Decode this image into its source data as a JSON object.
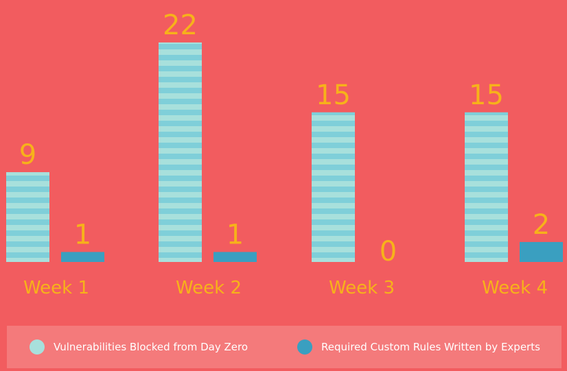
{
  "chart_data": {
    "type": "bar",
    "categories": [
      "Week 1",
      "Week 2",
      "Week 3",
      "Week 4"
    ],
    "series": [
      {
        "name": "Vulnerabilities Blocked from Day Zero",
        "values": [
          9,
          22,
          15,
          15
        ],
        "color": "#7FCFD9",
        "stripe_color": "#A8E0DC",
        "pattern": "horizontal-stripes"
      },
      {
        "name": "Required Custom Rules Written by Experts",
        "values": [
          1,
          1,
          0,
          2
        ],
        "color": "#3A9FC0"
      }
    ],
    "data_labels": true,
    "label_color": "#F7B21A",
    "background": "#F25C5F",
    "legend_position": "bottom",
    "title": "",
    "xlabel": "",
    "ylabel": ""
  },
  "legend": {
    "background": "#F47A7B",
    "items": [
      {
        "label": "Vulnerabilities Blocked from Day Zero",
        "color": "#A8E0DC"
      },
      {
        "label": "Required Custom Rules Written by Experts",
        "color": "#3A9FC0"
      }
    ]
  }
}
